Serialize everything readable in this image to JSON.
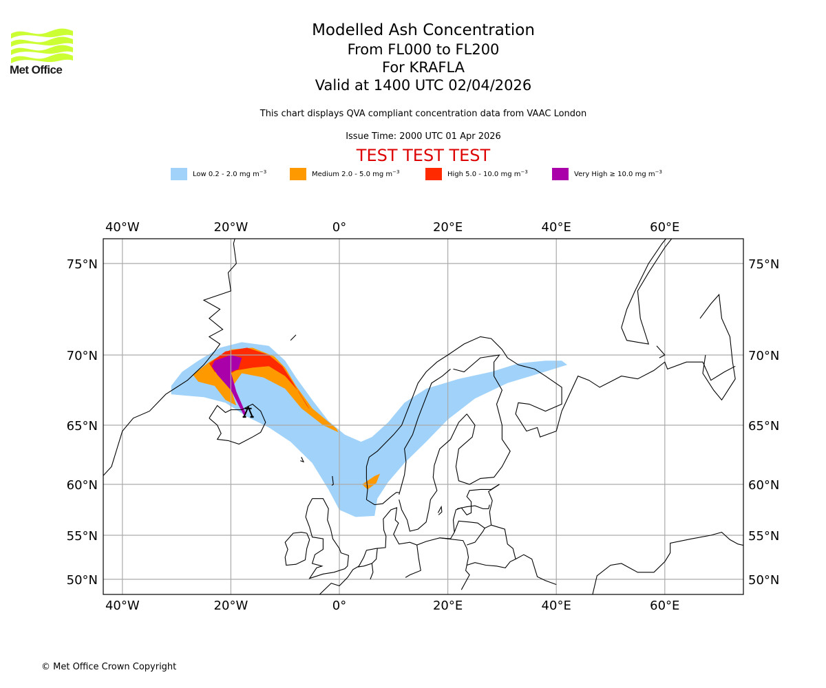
{
  "branding": {
    "logo_text": "Met Office",
    "logo_color": "#ccff33"
  },
  "header": {
    "title": "Modelled Ash Concentration",
    "levels": "From FL000 to FL200",
    "volcano": "For KRAFLA",
    "valid": "Valid at 1400 UTC 02/04/2026",
    "description": "This chart displays QVA compliant concentration data from VAAC London",
    "issue_time": "Issue Time: 2000 UTC 01 Apr 2026",
    "test_banner": "TEST TEST TEST",
    "test_color": "#dd0000"
  },
  "legend": [
    {
      "label": "Low 0.2 - 2.0 mg m",
      "exp": "−3",
      "color": "#a0d2fa"
    },
    {
      "label": "Medium 2.0 - 5.0 mg m",
      "exp": "−3",
      "color": "#ff9900"
    },
    {
      "label": "High 5.0 - 10.0 mg m",
      "exp": "−3",
      "color": "#ff2a00"
    },
    {
      "label": "Very High ≥ 10.0 mg m",
      "exp": "−3",
      "color": "#aa00aa"
    }
  ],
  "chart_data": {
    "type": "map",
    "title": "Modelled Ash Concentration",
    "extent": {
      "lon": [
        -43,
        75
      ],
      "lat": [
        48.5,
        76.5
      ]
    },
    "grid": true,
    "lon_ticks": [
      -40,
      -20,
      0,
      20,
      40,
      60
    ],
    "lon_tick_labels": [
      "40°W",
      "20°W",
      "0°",
      "20°E",
      "40°E",
      "60°E"
    ],
    "lat_ticks": [
      75,
      70,
      65,
      60,
      55,
      50
    ],
    "lat_tick_labels": [
      "75°N",
      "70°N",
      "65°N",
      "60°N",
      "55°N",
      "50°N"
    ],
    "source_volcano": {
      "name": "KRAFLA",
      "lon": -16.8,
      "lat": 65.7
    },
    "ash_regions": [
      {
        "level": "low",
        "color": "#a0d2fa",
        "polygon": [
          [
            -31,
            67.8
          ],
          [
            -29,
            68.8
          ],
          [
            -26,
            69.6
          ],
          [
            -22,
            70.4
          ],
          [
            -18,
            70.7
          ],
          [
            -13,
            70.5
          ],
          [
            -10,
            69.6
          ],
          [
            -8,
            68.4
          ],
          [
            -5,
            66.8
          ],
          [
            -2,
            65.3
          ],
          [
            1,
            64.2
          ],
          [
            4,
            63.6
          ],
          [
            6,
            64.0
          ],
          [
            9,
            65.2
          ],
          [
            12,
            66.6
          ],
          [
            16,
            67.6
          ],
          [
            22,
            68.3
          ],
          [
            28,
            68.8
          ],
          [
            33,
            69.4
          ],
          [
            38,
            69.6
          ],
          [
            41,
            69.6
          ],
          [
            42,
            69.3
          ],
          [
            37,
            68.7
          ],
          [
            31,
            68.0
          ],
          [
            25,
            66.9
          ],
          [
            20,
            65.4
          ],
          [
            16,
            63.6
          ],
          [
            12,
            61.8
          ],
          [
            9,
            60.2
          ],
          [
            7,
            58.6
          ],
          [
            6.5,
            56.9
          ],
          [
            3,
            56.8
          ],
          [
            0,
            57.5
          ],
          [
            -2,
            59.5
          ],
          [
            -5,
            61.8
          ],
          [
            -9,
            63.6
          ],
          [
            -13,
            64.8
          ],
          [
            -17,
            65.6
          ],
          [
            -21,
            66.6
          ],
          [
            -25,
            67.0
          ],
          [
            -28,
            67.1
          ],
          [
            -31,
            67.2
          ]
        ]
      },
      {
        "level": "medium",
        "color": "#ff9900",
        "polygon": [
          [
            -27,
            68.6
          ],
          [
            -24,
            69.5
          ],
          [
            -20,
            70.3
          ],
          [
            -16,
            70.4
          ],
          [
            -12,
            69.9
          ],
          [
            -10,
            69.1
          ],
          [
            -8,
            67.8
          ],
          [
            -5,
            66.2
          ],
          [
            -0.5,
            64.7
          ],
          [
            -0.2,
            64.4
          ],
          [
            -3,
            65.0
          ],
          [
            -7,
            66.2
          ],
          [
            -10,
            67.6
          ],
          [
            -14,
            68.4
          ],
          [
            -18,
            68.7
          ],
          [
            -20,
            67.6
          ],
          [
            -19,
            66.4
          ],
          [
            -21,
            66.8
          ],
          [
            -23,
            67.8
          ],
          [
            -26,
            68.1
          ]
        ]
      },
      {
        "level": "medium",
        "color": "#ff9900",
        "polygon": [
          [
            4.2,
            60.0
          ],
          [
            6.5,
            60.7
          ],
          [
            7.5,
            60.9
          ],
          [
            6.8,
            60.1
          ],
          [
            5.2,
            59.5
          ]
        ]
      },
      {
        "level": "high",
        "color": "#ff2a00",
        "polygon": [
          [
            -24,
            69.4
          ],
          [
            -21,
            70.2
          ],
          [
            -17,
            70.4
          ],
          [
            -13,
            70.0
          ],
          [
            -10.5,
            69.2
          ],
          [
            -8.5,
            68.0
          ],
          [
            -6,
            66.4
          ],
          [
            -5.4,
            66.1
          ],
          [
            -7.5,
            67.4
          ],
          [
            -10,
            68.5
          ],
          [
            -13,
            69.2
          ],
          [
            -16,
            69.1
          ],
          [
            -19,
            68.9
          ],
          [
            -21,
            68.5
          ],
          [
            -23,
            68.8
          ]
        ]
      },
      {
        "level": "very_high",
        "color": "#aa00aa",
        "polygon": [
          [
            -23,
            69.6
          ],
          [
            -20,
            70.0
          ],
          [
            -18,
            69.8
          ],
          [
            -18.6,
            69.0
          ],
          [
            -20,
            68.8
          ],
          [
            -19,
            67.4
          ],
          [
            -17.2,
            65.8
          ],
          [
            -17.6,
            65.7
          ],
          [
            -20,
            67.5
          ],
          [
            -22.5,
            68.6
          ],
          [
            -23.5,
            69.2
          ]
        ]
      }
    ]
  },
  "footer": {
    "copyright": "© Met Office Crown Copyright"
  }
}
